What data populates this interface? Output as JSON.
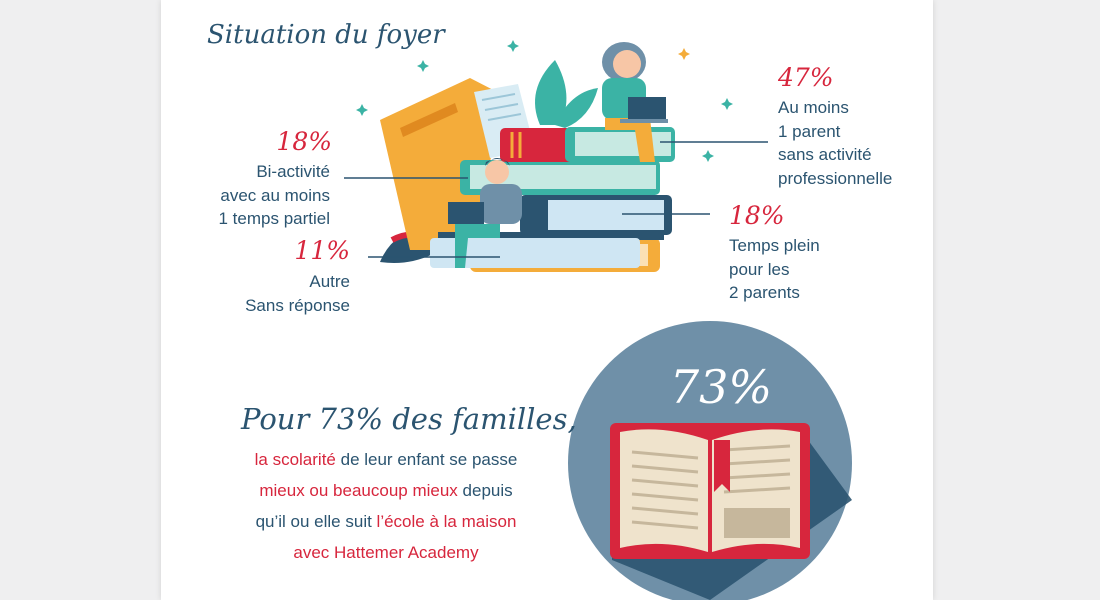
{
  "household": {
    "title": "Situation du foyer",
    "stats": [
      {
        "percent": "47%",
        "lines": [
          "Au moins",
          "1 parent",
          "sans activité",
          "professionnelle"
        ]
      },
      {
        "percent": "18%",
        "lines": [
          "Bi-activité",
          "avec au moins",
          "1 temps partiel"
        ]
      },
      {
        "percent": "18%",
        "lines": [
          "Temps plein",
          "pour les",
          "2 parents"
        ]
      },
      {
        "percent": "11%",
        "lines": [
          "Autre",
          "Sans réponse"
        ]
      }
    ]
  },
  "families": {
    "headline": "Pour 73% des familles,",
    "line1_red": "la scolarité",
    "line1_rest": " de leur enfant se passe",
    "line2_red": "mieux ou beaucoup mieux",
    "line2_rest": " depuis",
    "line3_start": "qu’il ou elle suit ",
    "line3_red": "l’école à la maison",
    "line4_red": "avec Hattemer Academy",
    "big_percent": "73%"
  },
  "colors": {
    "accent_red": "#d7263d",
    "navy": "#2b5470",
    "circle": "#6f90a8",
    "teal": "#3bb3a5",
    "orange": "#f4ac3a"
  }
}
